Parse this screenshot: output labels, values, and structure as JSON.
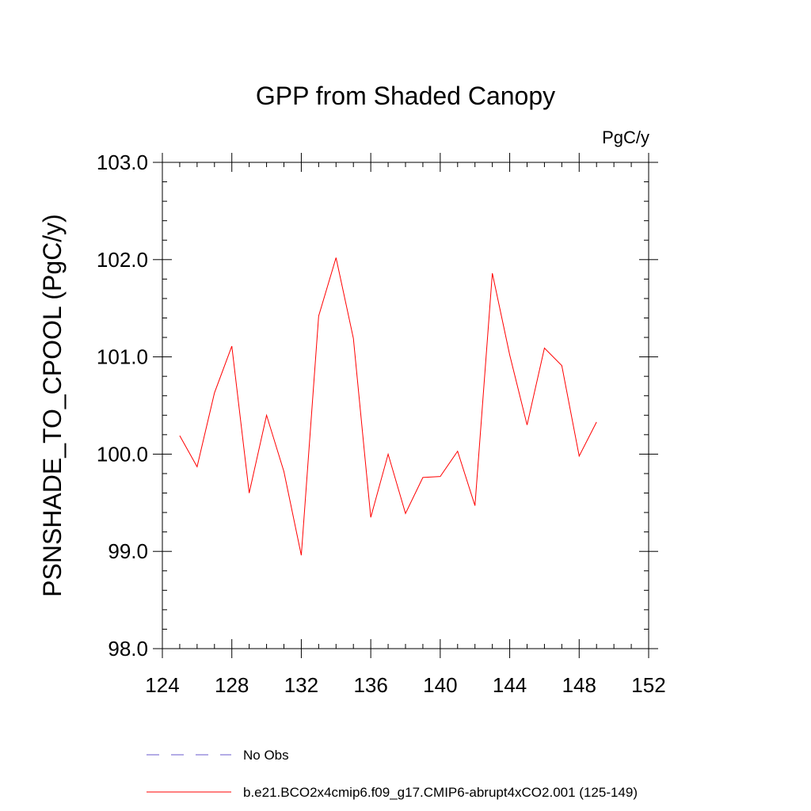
{
  "chart_data": {
    "type": "line",
    "title": "GPP from Shaded Canopy",
    "units_label": "PgC/y",
    "ylabel": "PSNSHADE_TO_CPOOL  (PgC/y)",
    "xlabel": "",
    "xlim": [
      124,
      152
    ],
    "ylim": [
      98.0,
      103.0
    ],
    "x_ticks": [
      124,
      128,
      132,
      136,
      140,
      144,
      148,
      152
    ],
    "x_tick_labels": [
      "124",
      "128",
      "132",
      "136",
      "140",
      "144",
      "148",
      "152"
    ],
    "y_ticks": [
      98.0,
      99.0,
      100.0,
      101.0,
      102.0,
      103.0
    ],
    "y_tick_labels": [
      "98.0",
      "99.0",
      "100.0",
      "101.0",
      "102.0",
      "103.0"
    ],
    "grid": false,
    "legend_position": "bottom",
    "series": [
      {
        "name": "b.e21.BCO2x4cmip6.f09_g17.CMIP6-abrupt4xCO2.001 (125-149)",
        "color": "#ff0000",
        "dash": "solid",
        "x": [
          125,
          126,
          127,
          128,
          129,
          130,
          131,
          132,
          133,
          134,
          135,
          136,
          137,
          138,
          139,
          140,
          141,
          142,
          143,
          144,
          145,
          146,
          147,
          148,
          149
        ],
        "y": [
          100.19,
          99.87,
          100.63,
          101.11,
          99.6,
          100.4,
          99.82,
          98.96,
          101.42,
          102.02,
          101.19,
          99.35,
          100.0,
          99.39,
          99.76,
          99.77,
          100.03,
          99.47,
          101.86,
          101.02,
          100.3,
          101.09,
          100.91,
          99.98,
          100.33
        ]
      }
    ],
    "legend": [
      {
        "label": "No Obs",
        "color": "#6a5acd",
        "dash": "dashed"
      },
      {
        "label": "b.e21.BCO2x4cmip6.f09_g17.CMIP6-abrupt4xCO2.001 (125-149)",
        "color": "#ff0000",
        "dash": "solid"
      }
    ]
  }
}
